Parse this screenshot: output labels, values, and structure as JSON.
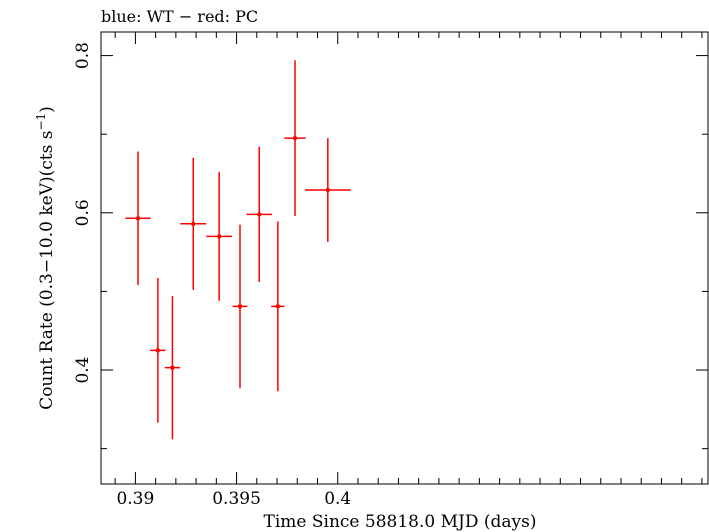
{
  "chart_data": {
    "type": "scatter",
    "title": "blue: WT − red: PC",
    "xlabel": "Time Since 58818.0 MJD (days)",
    "ylabel_main": "Count Rate (0.3−10.0 keV)(cts s",
    "ylabel_sup": "−1",
    "ylabel_end": ")",
    "xlim": [
      0.3883,
      0.4183
    ],
    "ylim": [
      0.255,
      0.83
    ],
    "xticks": [
      0.39,
      0.395,
      0.4
    ],
    "xtick_labels": [
      "0.39",
      "0.395",
      "0.4"
    ],
    "yticks": [
      0.4,
      0.6,
      0.8
    ],
    "ytick_labels": [
      "0.4",
      "0.6",
      "0.8"
    ],
    "grid": false,
    "series": [
      {
        "color": "#ff0000",
        "points": [
          {
            "x": 0.39013,
            "xerr": 0.00062,
            "y": 0.593,
            "yerr": 0.085
          },
          {
            "x": 0.39111,
            "xerr": 0.00038,
            "y": 0.425,
            "yerr": 0.092
          },
          {
            "x": 0.39183,
            "xerr": 0.00038,
            "y": 0.403,
            "yerr": 0.091
          },
          {
            "x": 0.39286,
            "xerr": 0.00064,
            "y": 0.586,
            "yerr": 0.084
          },
          {
            "x": 0.39414,
            "xerr": 0.00064,
            "y": 0.57,
            "yerr": 0.082
          },
          {
            "x": 0.39517,
            "xerr": 0.00037,
            "y": 0.481,
            "yerr": 0.104
          },
          {
            "x": 0.39612,
            "xerr": 0.00063,
            "y": 0.598,
            "yerr": 0.086
          },
          {
            "x": 0.39704,
            "xerr": 0.00033,
            "y": 0.481,
            "yerr": 0.108
          },
          {
            "x": 0.39789,
            "xerr": 0.00053,
            "y": 0.695,
            "yerr": 0.099
          },
          {
            "x": 0.39951,
            "xerr": 0.00113,
            "y": 0.629,
            "yerr": 0.066
          }
        ]
      }
    ]
  }
}
